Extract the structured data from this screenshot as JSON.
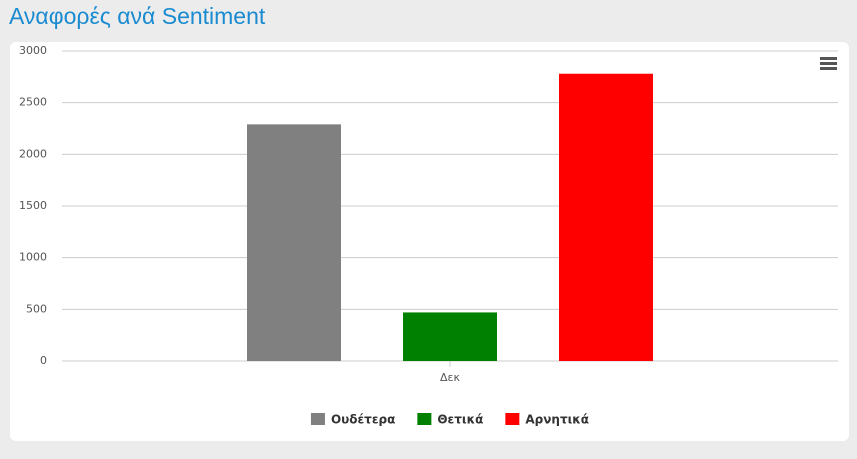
{
  "chart_data": {
    "type": "bar",
    "title": "Αναφορές ανά Sentiment",
    "categories": [
      "Δεκ"
    ],
    "series": [
      {
        "name": "Ουδέτερα",
        "color": "#808080",
        "values": [
          2290
        ]
      },
      {
        "name": "Θετικά",
        "color": "#008000",
        "values": [
          470
        ]
      },
      {
        "name": "Αρνητικά",
        "color": "#ff0000",
        "values": [
          2780
        ]
      }
    ],
    "ylim": [
      0,
      3000
    ],
    "yticks": [
      0,
      500,
      1000,
      1500,
      2000,
      2500,
      3000
    ],
    "grid": true,
    "legend": "bottom"
  }
}
